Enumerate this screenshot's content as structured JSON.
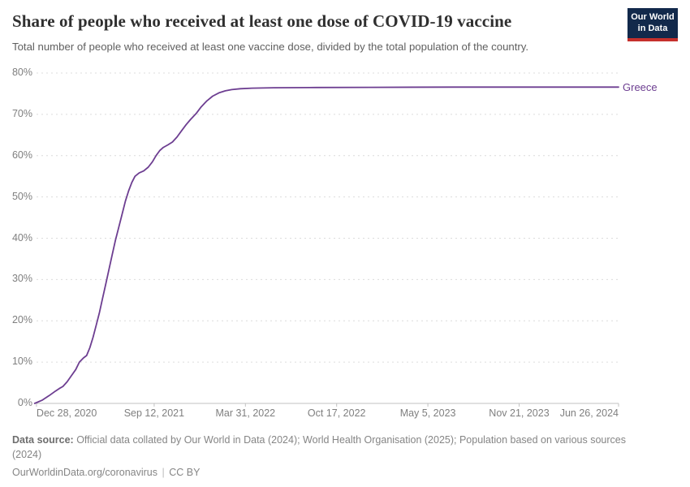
{
  "header": {
    "title": "Share of people who received at least one dose of COVID-19 vaccine",
    "subtitle": "Total number of people who received at least one vaccine dose, divided by the total population of the country.",
    "logo": {
      "line1": "Our World",
      "line2": "in Data"
    }
  },
  "chart_data": {
    "type": "line",
    "title": "Share of people who received at least one dose of COVID-19 vaccine",
    "xlabel": "",
    "ylabel": "",
    "ylim": [
      0,
      80
    ],
    "grid": "horizontal-dashed",
    "legend_position": "end-of-line",
    "x_domain": [
      "2020-12-21",
      "2024-06-26"
    ],
    "y_ticks": [
      {
        "value": 0,
        "label": "0%"
      },
      {
        "value": 10,
        "label": "10%"
      },
      {
        "value": 20,
        "label": "20%"
      },
      {
        "value": 30,
        "label": "30%"
      },
      {
        "value": 40,
        "label": "40%"
      },
      {
        "value": 50,
        "label": "50%"
      },
      {
        "value": 60,
        "label": "60%"
      },
      {
        "value": 70,
        "label": "70%"
      },
      {
        "value": 80,
        "label": "80%"
      }
    ],
    "x_ticks": [
      {
        "date": "2020-12-28",
        "label": "Dec 28, 2020",
        "align": "left"
      },
      {
        "date": "2021-09-12",
        "label": "Sep 12, 2021",
        "align": "center"
      },
      {
        "date": "2022-03-31",
        "label": "Mar 31, 2022",
        "align": "center"
      },
      {
        "date": "2022-10-17",
        "label": "Oct 17, 2022",
        "align": "center"
      },
      {
        "date": "2023-05-05",
        "label": "May 5, 2023",
        "align": "center"
      },
      {
        "date": "2023-11-21",
        "label": "Nov 21, 2023",
        "align": "center"
      },
      {
        "date": "2024-06-26",
        "label": "Jun 26, 2024",
        "align": "right"
      }
    ],
    "series": [
      {
        "name": "Greece",
        "color": "#6D3E91",
        "points": [
          [
            "2020-12-24",
            0
          ],
          [
            "2021-01-10",
            0.8
          ],
          [
            "2021-01-25",
            1.9
          ],
          [
            "2021-02-08",
            3.0
          ],
          [
            "2021-02-16",
            3.6
          ],
          [
            "2021-02-24",
            4.1
          ],
          [
            "2021-03-05",
            5.2
          ],
          [
            "2021-03-14",
            6.6
          ],
          [
            "2021-03-24",
            8.2
          ],
          [
            "2021-04-01",
            10.0
          ],
          [
            "2021-04-10",
            11.0
          ],
          [
            "2021-04-17",
            11.6
          ],
          [
            "2021-04-24",
            13.5
          ],
          [
            "2021-05-01",
            16.0
          ],
          [
            "2021-05-08",
            19.0
          ],
          [
            "2021-05-15",
            22.0
          ],
          [
            "2021-05-22",
            25.5
          ],
          [
            "2021-05-29",
            29.0
          ],
          [
            "2021-06-05",
            32.5
          ],
          [
            "2021-06-12",
            36.0
          ],
          [
            "2021-06-19",
            39.5
          ],
          [
            "2021-06-26",
            42.5
          ],
          [
            "2021-07-03",
            45.5
          ],
          [
            "2021-07-11",
            49.0
          ],
          [
            "2021-07-18",
            51.5
          ],
          [
            "2021-07-25",
            53.5
          ],
          [
            "2021-08-01",
            55.0
          ],
          [
            "2021-08-10",
            55.8
          ],
          [
            "2021-08-20",
            56.3
          ],
          [
            "2021-08-30",
            57.2
          ],
          [
            "2021-09-08",
            58.5
          ],
          [
            "2021-09-16",
            60.0
          ],
          [
            "2021-09-24",
            61.2
          ],
          [
            "2021-10-02",
            62.0
          ],
          [
            "2021-10-12",
            62.6
          ],
          [
            "2021-10-22",
            63.3
          ],
          [
            "2021-11-01",
            64.5
          ],
          [
            "2021-11-11",
            66.0
          ],
          [
            "2021-11-21",
            67.5
          ],
          [
            "2021-12-01",
            68.8
          ],
          [
            "2021-12-13",
            70.2
          ],
          [
            "2021-12-24",
            71.8
          ],
          [
            "2022-01-05",
            73.2
          ],
          [
            "2022-01-18",
            74.4
          ],
          [
            "2022-02-01",
            75.2
          ],
          [
            "2022-02-15",
            75.7
          ],
          [
            "2022-03-01",
            76.0
          ],
          [
            "2022-03-20",
            76.2
          ],
          [
            "2022-04-15",
            76.35
          ],
          [
            "2022-06-01",
            76.45
          ],
          [
            "2022-09-01",
            76.5
          ],
          [
            "2023-01-01",
            76.55
          ],
          [
            "2023-07-01",
            76.6
          ],
          [
            "2024-01-01",
            76.6
          ],
          [
            "2024-06-26",
            76.6
          ]
        ]
      }
    ]
  },
  "footer": {
    "source_label": "Data source:",
    "source_text": " Official data collated by Our World in Data (2024); World Health Organisation (2025); Population based on various sources (2024)",
    "link_text": "OurWorldinData.org/coronavirus",
    "separator": "|",
    "license": "CC BY"
  }
}
